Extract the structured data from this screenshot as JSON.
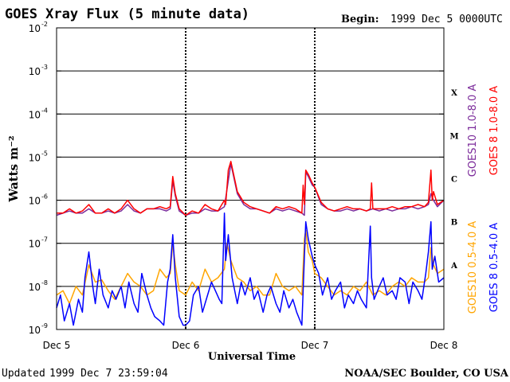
{
  "header": {
    "title": "GOES Xray Flux (5 minute data)",
    "begin_label": "Begin:",
    "begin_value": "1999 Dec 5 0000UTC"
  },
  "footer": {
    "updated_label": "Updated",
    "updated_value": "1999 Dec  7 23:59:04",
    "source": "NOAA/SEC Boulder, CO USA"
  },
  "colors": {
    "goes10_long": "#7b2a9a",
    "goes8_long": "#ff0000",
    "goes10_short": "#ffa500",
    "goes8_short": "#0000ff",
    "frame": "#000000"
  },
  "chart_data": {
    "type": "line",
    "title": "GOES Xray Flux (5 minute data)",
    "xlabel": "Universal Time",
    "ylabel": "Watts m⁻²",
    "yscale": "log",
    "ylim_exp": [
      -9,
      -2
    ],
    "y_ticks": [
      {
        "base": "10",
        "exp": "-2",
        "e": -2
      },
      {
        "base": "10",
        "exp": "-3",
        "e": -3
      },
      {
        "base": "10",
        "exp": "-4",
        "e": -4
      },
      {
        "base": "10",
        "exp": "-5",
        "e": -5
      },
      {
        "base": "10",
        "exp": "-6",
        "e": -6
      },
      {
        "base": "10",
        "exp": "-7",
        "e": -7
      },
      {
        "base": "10",
        "exp": "-8",
        "e": -8
      },
      {
        "base": "10",
        "exp": "-9",
        "e": -9
      }
    ],
    "xlim_days": [
      0,
      3
    ],
    "x_ticks": [
      {
        "label": "Dec 5",
        "day": 0
      },
      {
        "label": "Dec 6",
        "day": 1
      },
      {
        "label": "Dec 7",
        "day": 2
      },
      {
        "label": "Dec 8",
        "day": 3
      }
    ],
    "flare_classes": [
      {
        "label": "X",
        "exp": -3.5
      },
      {
        "label": "M",
        "exp": -4.5
      },
      {
        "label": "C",
        "exp": -5.5
      },
      {
        "label": "B",
        "exp": -6.5
      },
      {
        "label": "A",
        "exp": -7.5
      }
    ],
    "series": [
      {
        "name": "GOES10 1.0-8.0 A",
        "key": "goes10_long",
        "x_days": [
          0,
          0.05,
          0.1,
          0.15,
          0.2,
          0.25,
          0.3,
          0.35,
          0.4,
          0.45,
          0.5,
          0.55,
          0.6,
          0.65,
          0.7,
          0.75,
          0.8,
          0.85,
          0.88,
          0.9,
          0.92,
          0.95,
          1.0,
          1.05,
          1.1,
          1.15,
          1.2,
          1.25,
          1.3,
          1.35,
          1.4,
          1.45,
          1.5,
          1.55,
          1.6,
          1.65,
          1.7,
          1.75,
          1.8,
          1.85,
          1.9,
          1.92,
          1.93,
          1.95,
          1.98,
          2.0,
          2.05,
          2.1,
          2.15,
          2.2,
          2.25,
          2.3,
          2.35,
          2.4,
          2.45,
          2.5,
          2.55,
          2.6,
          2.65,
          2.7,
          2.75,
          2.8,
          2.85,
          2.88,
          2.9,
          2.92,
          2.95,
          3.0
        ],
        "log_values": [
          -6.35,
          -6.3,
          -6.25,
          -6.3,
          -6.3,
          -6.2,
          -6.3,
          -6.3,
          -6.25,
          -6.3,
          -6.25,
          -6.1,
          -6.25,
          -6.3,
          -6.2,
          -6.2,
          -6.2,
          -6.25,
          -6.2,
          -5.55,
          -5.9,
          -6.25,
          -6.35,
          -6.3,
          -6.3,
          -6.2,
          -6.25,
          -6.25,
          -6.15,
          -5.15,
          -5.85,
          -6.1,
          -6.2,
          -6.2,
          -6.25,
          -6.3,
          -6.2,
          -6.25,
          -6.2,
          -6.25,
          -6.3,
          -6.35,
          -5.35,
          -5.45,
          -5.65,
          -5.7,
          -6.1,
          -6.2,
          -6.25,
          -6.25,
          -6.2,
          -6.25,
          -6.2,
          -6.25,
          -6.2,
          -6.25,
          -6.2,
          -6.25,
          -6.2,
          -6.2,
          -6.15,
          -6.2,
          -6.15,
          -6.1,
          -5.85,
          -6.0,
          -6.15,
          -6.0
        ]
      },
      {
        "name": "GOES 8 1.0-8.0 A",
        "key": "goes8_long",
        "x_days": [
          0,
          0.05,
          0.1,
          0.15,
          0.2,
          0.25,
          0.3,
          0.35,
          0.4,
          0.45,
          0.5,
          0.55,
          0.6,
          0.65,
          0.7,
          0.75,
          0.8,
          0.85,
          0.88,
          0.9,
          0.92,
          0.95,
          1.0,
          1.05,
          1.1,
          1.15,
          1.2,
          1.25,
          1.3,
          1.31,
          1.33,
          1.35,
          1.4,
          1.45,
          1.5,
          1.55,
          1.6,
          1.65,
          1.7,
          1.75,
          1.8,
          1.85,
          1.9,
          1.91,
          1.92,
          1.93,
          1.95,
          1.98,
          2.0,
          2.05,
          2.1,
          2.15,
          2.2,
          2.25,
          2.3,
          2.35,
          2.4,
          2.43,
          2.44,
          2.45,
          2.5,
          2.55,
          2.6,
          2.65,
          2.7,
          2.75,
          2.8,
          2.85,
          2.88,
          2.9,
          2.91,
          2.92,
          2.95,
          3.0
        ],
        "log_values": [
          -6.3,
          -6.3,
          -6.2,
          -6.3,
          -6.25,
          -6.1,
          -6.3,
          -6.3,
          -6.2,
          -6.3,
          -6.2,
          -6.0,
          -6.2,
          -6.3,
          -6.2,
          -6.2,
          -6.15,
          -6.2,
          -6.15,
          -5.45,
          -5.85,
          -6.2,
          -6.35,
          -6.25,
          -6.3,
          -6.1,
          -6.2,
          -6.25,
          -6.0,
          -6.1,
          -5.3,
          -5.1,
          -5.8,
          -6.05,
          -6.15,
          -6.2,
          -6.25,
          -6.3,
          -6.15,
          -6.2,
          -6.15,
          -6.2,
          -6.3,
          -5.65,
          -6.1,
          -5.3,
          -5.4,
          -5.6,
          -5.7,
          -6.05,
          -6.2,
          -6.25,
          -6.2,
          -6.15,
          -6.2,
          -6.2,
          -6.25,
          -6.2,
          -5.6,
          -6.2,
          -6.2,
          -6.2,
          -6.15,
          -6.2,
          -6.15,
          -6.15,
          -6.1,
          -6.15,
          -6.05,
          -5.3,
          -6.0,
          -5.8,
          -6.1,
          -6.0
        ]
      },
      {
        "name": "GOES10 0.5-4.0 A",
        "key": "goes10_short",
        "x_days": [
          0,
          0.05,
          0.1,
          0.15,
          0.2,
          0.25,
          0.3,
          0.35,
          0.4,
          0.45,
          0.5,
          0.55,
          0.6,
          0.65,
          0.7,
          0.75,
          0.8,
          0.85,
          0.88,
          0.9,
          0.92,
          0.95,
          1.0,
          1.05,
          1.1,
          1.15,
          1.2,
          1.25,
          1.3,
          1.32,
          1.35,
          1.4,
          1.45,
          1.5,
          1.55,
          1.6,
          1.65,
          1.7,
          1.75,
          1.8,
          1.85,
          1.9,
          1.92,
          1.93,
          1.95,
          1.98,
          2.0,
          2.05,
          2.1,
          2.15,
          2.2,
          2.25,
          2.3,
          2.35,
          2.4,
          2.45,
          2.5,
          2.55,
          2.6,
          2.65,
          2.7,
          2.75,
          2.8,
          2.85,
          2.88,
          2.9,
          2.92,
          2.95,
          3.0
        ],
        "log_values": [
          -8.2,
          -8.1,
          -8.4,
          -8.0,
          -8.2,
          -7.5,
          -7.9,
          -7.85,
          -8.1,
          -8.3,
          -8.0,
          -7.7,
          -7.9,
          -8.0,
          -8.2,
          -8.1,
          -7.6,
          -7.8,
          -7.7,
          -7.0,
          -7.5,
          -8.1,
          -8.2,
          -7.9,
          -8.1,
          -7.6,
          -7.9,
          -7.8,
          -7.6,
          -7.0,
          -7.4,
          -7.8,
          -7.9,
          -8.1,
          -8.0,
          -8.2,
          -8.2,
          -7.7,
          -8.0,
          -8.1,
          -8.0,
          -8.2,
          -6.9,
          -6.7,
          -7.2,
          -7.4,
          -7.7,
          -7.8,
          -8.0,
          -8.2,
          -8.1,
          -8.2,
          -8.0,
          -8.1,
          -7.9,
          -8.2,
          -8.1,
          -8.2,
          -8.0,
          -7.9,
          -8.0,
          -7.8,
          -7.9,
          -7.9,
          -7.8,
          -7.1,
          -7.5,
          -7.7,
          -7.6
        ]
      },
      {
        "name": "GOES 8 0.5-4.0 A",
        "key": "goes8_short",
        "x_days": [
          0,
          0.03,
          0.06,
          0.1,
          0.13,
          0.17,
          0.2,
          0.22,
          0.25,
          0.28,
          0.3,
          0.33,
          0.36,
          0.4,
          0.43,
          0.46,
          0.5,
          0.53,
          0.56,
          0.6,
          0.63,
          0.66,
          0.7,
          0.73,
          0.76,
          0.8,
          0.83,
          0.86,
          0.88,
          0.9,
          0.92,
          0.95,
          0.98,
          1.0,
          1.03,
          1.06,
          1.1,
          1.13,
          1.16,
          1.2,
          1.23,
          1.26,
          1.28,
          1.3,
          1.31,
          1.33,
          1.36,
          1.4,
          1.43,
          1.46,
          1.5,
          1.53,
          1.56,
          1.6,
          1.63,
          1.66,
          1.7,
          1.73,
          1.76,
          1.8,
          1.83,
          1.86,
          1.9,
          1.92,
          1.93,
          1.95,
          1.98,
          2.0,
          2.03,
          2.06,
          2.1,
          2.13,
          2.16,
          2.2,
          2.23,
          2.26,
          2.3,
          2.33,
          2.36,
          2.4,
          2.43,
          2.44,
          2.46,
          2.5,
          2.53,
          2.56,
          2.6,
          2.63,
          2.66,
          2.7,
          2.73,
          2.76,
          2.8,
          2.83,
          2.86,
          2.88,
          2.9,
          2.91,
          2.93,
          2.96,
          3.0
        ],
        "log_values": [
          -8.5,
          -8.2,
          -8.8,
          -8.4,
          -8.9,
          -8.3,
          -8.6,
          -7.8,
          -7.2,
          -8.0,
          -8.4,
          -7.6,
          -8.2,
          -8.5,
          -8.1,
          -8.3,
          -8.0,
          -8.5,
          -7.9,
          -8.4,
          -8.6,
          -7.7,
          -8.2,
          -8.5,
          -8.7,
          -8.8,
          -8.9,
          -7.9,
          -7.6,
          -6.8,
          -7.8,
          -8.7,
          -8.9,
          -8.9,
          -8.8,
          -8.2,
          -8.0,
          -8.6,
          -8.3,
          -7.9,
          -8.1,
          -8.3,
          -8.4,
          -6.3,
          -7.4,
          -6.8,
          -7.8,
          -8.4,
          -7.9,
          -8.2,
          -7.8,
          -8.3,
          -8.1,
          -8.6,
          -8.2,
          -8.0,
          -8.4,
          -8.6,
          -8.1,
          -8.5,
          -8.3,
          -8.6,
          -8.9,
          -7.3,
          -6.5,
          -6.9,
          -7.3,
          -7.5,
          -7.7,
          -8.2,
          -7.8,
          -8.3,
          -8.1,
          -7.9,
          -8.5,
          -8.2,
          -8.4,
          -8.1,
          -8.3,
          -8.5,
          -6.6,
          -7.8,
          -8.3,
          -8.0,
          -7.8,
          -8.2,
          -8.1,
          -8.3,
          -7.8,
          -7.9,
          -8.4,
          -7.9,
          -8.1,
          -8.3,
          -7.7,
          -7.2,
          -6.5,
          -7.6,
          -7.3,
          -7.9,
          -7.8
        ]
      }
    ]
  }
}
